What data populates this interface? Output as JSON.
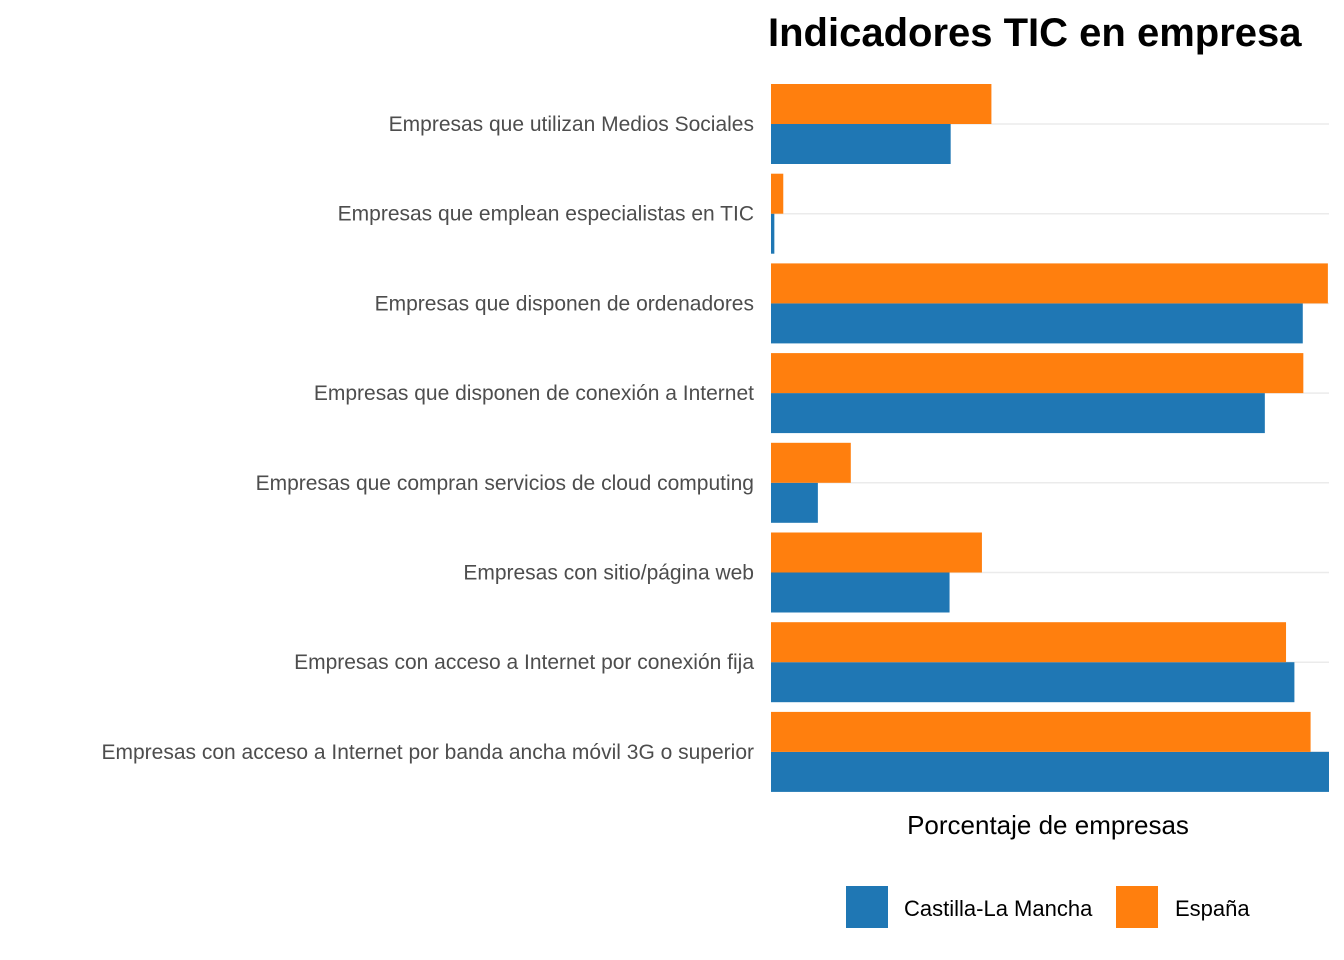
{
  "chart_data": {
    "type": "bar",
    "orientation": "horizontal",
    "title": "Indicadores TIC en empresa",
    "xlabel": "Porcentaje de empresas",
    "ylabel": "",
    "xlim": [
      0,
      100
    ],
    "grid": true,
    "legend_position": "bottom",
    "categories": [
      "Empresas que utilizan Medios Sociales",
      "Empresas que emplean especialistas en TIC",
      "Empresas que disponen de ordenadores",
      "Empresas que disponen de conexión a Internet",
      "Empresas que compran servicios de cloud computing",
      "Empresas con sitio/página web",
      "Empresas con acceso a Internet por conexión fija",
      "Empresas con acceso a Internet por banda ancha móvil 3G o superior"
    ],
    "series": [
      {
        "name": "Castilla-La Mancha",
        "color": "#1f77b4",
        "values": [
          32.2,
          0.6,
          95.3,
          88.5,
          8.4,
          32.0,
          93.8,
          100.0
        ]
      },
      {
        "name": "España",
        "color": "#ff7f0e",
        "values": [
          39.5,
          2.2,
          99.8,
          95.4,
          14.3,
          37.8,
          92.3,
          96.7
        ]
      }
    ]
  }
}
